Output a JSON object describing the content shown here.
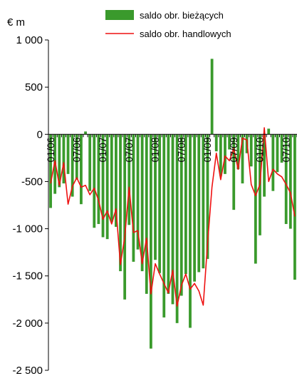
{
  "chart_data": {
    "type": "bar",
    "ylabel": "€ m",
    "ylim": [
      -2500,
      1000
    ],
    "yticks": [
      {
        "value": 1000,
        "label": "1 000"
      },
      {
        "value": 500,
        "label": "500"
      },
      {
        "value": 0,
        "label": "0"
      },
      {
        "value": -500,
        "label": "-500"
      },
      {
        "value": -1000,
        "label": "-1 000"
      },
      {
        "value": -1500,
        "label": "-1 500"
      },
      {
        "value": -2000,
        "label": "-2 000"
      },
      {
        "value": -2500,
        "label": "-2 500"
      }
    ],
    "x_tick_labels": [
      {
        "index": 0,
        "label": "01/06"
      },
      {
        "index": 6,
        "label": "07/06"
      },
      {
        "index": 12,
        "label": "01/07"
      },
      {
        "index": 18,
        "label": "07/07"
      },
      {
        "index": 24,
        "label": "01/08"
      },
      {
        "index": 30,
        "label": "07/08"
      },
      {
        "index": 36,
        "label": "01/09"
      },
      {
        "index": 42,
        "label": "07/09"
      },
      {
        "index": 48,
        "label": "01/10"
      },
      {
        "index": 54,
        "label": "07/10"
      }
    ],
    "categories_count": 57,
    "series": [
      {
        "name": "saldo obr. bieżących",
        "type": "bar",
        "color": "#3a9a2c",
        "values": [
          -780,
          -630,
          -560,
          -520,
          -420,
          -660,
          -480,
          -740,
          30,
          -600,
          -990,
          -950,
          -1090,
          -1110,
          -930,
          -980,
          -1450,
          -1750,
          -960,
          -1350,
          -1220,
          -1450,
          -1690,
          -2270,
          -1330,
          -1470,
          -1940,
          -1690,
          -1800,
          -2000,
          -1710,
          -1480,
          -2050,
          -1560,
          -1460,
          -1420,
          -1320,
          800,
          -180,
          -440,
          -420,
          -160,
          -800,
          -370,
          -520,
          -200,
          -340,
          -1370,
          -1070,
          -660,
          60,
          -600,
          -400,
          -300,
          -950,
          -1000,
          -1540
        ]
      },
      {
        "name": "saldo obr. handlowych",
        "type": "line",
        "color": "#ee1111",
        "values": [
          -520,
          -280,
          -540,
          -300,
          -740,
          -550,
          -460,
          -560,
          -540,
          -640,
          -570,
          -700,
          -900,
          -810,
          -950,
          -790,
          -1380,
          -1090,
          -560,
          -1040,
          -1020,
          -1370,
          -1100,
          -1690,
          -1370,
          -1480,
          -1580,
          -1680,
          -1440,
          -1820,
          -1600,
          -1480,
          -1640,
          -1580,
          -1660,
          -1810,
          -1150,
          -560,
          -200,
          -480,
          -230,
          -280,
          -150,
          -370,
          -40,
          -60,
          -530,
          -650,
          -530,
          70,
          -500,
          -370,
          -420,
          -450,
          -530,
          -620,
          -870
        ]
      }
    ],
    "legend": "top-right"
  }
}
